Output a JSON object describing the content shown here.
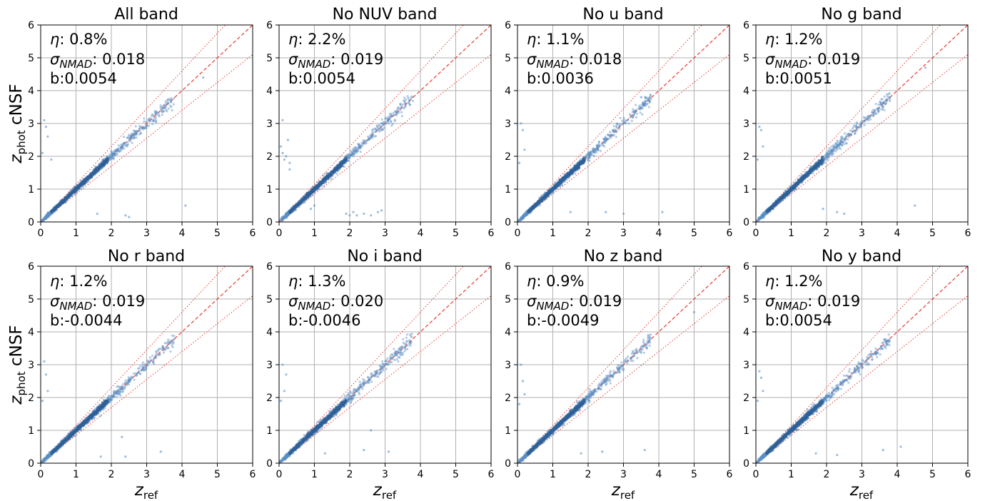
{
  "figure": {
    "ylabel_main": "z",
    "ylabel_sub": "phot",
    "ylabel_suffix": " cNSF",
    "xlabel_main": "z",
    "xlabel_sub": "ref"
  },
  "chart_data": [
    {
      "type": "scatter",
      "title": "All band",
      "metrics": {
        "eta": "0.8%",
        "sigma": "0.018",
        "b": "0.0054"
      },
      "metric_prefix": {
        "eta": "η",
        "sigma": "σ",
        "sigma_sub": "NMAD"
      },
      "xlim": [
        0,
        6
      ],
      "ylim": [
        0,
        6
      ],
      "xticks": [
        0,
        1,
        2,
        3,
        4,
        5,
        6
      ],
      "yticks": [
        0,
        1,
        2,
        3,
        4,
        5,
        6
      ],
      "grid": true,
      "reference_lines": {
        "identity": "dashed",
        "bounds": [
          0.85,
          1.15
        ]
      },
      "outliers": [
        [
          0.1,
          3.1
        ],
        [
          0.15,
          2.9
        ],
        [
          0.2,
          2.6
        ],
        [
          0.05,
          2.1
        ],
        [
          1.6,
          0.25
        ],
        [
          2.4,
          0.2
        ],
        [
          2.5,
          0.15
        ],
        [
          4.1,
          0.5
        ],
        [
          4.6,
          4.4
        ],
        [
          0.3,
          1.9
        ]
      ]
    },
    {
      "type": "scatter",
      "title": "No NUV band",
      "metrics": {
        "eta": "2.2%",
        "sigma": "0.019",
        "b": "0.0054"
      },
      "metric_prefix": {
        "eta": "η",
        "sigma": "σ",
        "sigma_sub": "NMAD"
      },
      "xlim": [
        0,
        6
      ],
      "ylim": [
        0,
        6
      ],
      "xticks": [
        0,
        1,
        2,
        3,
        4,
        5,
        6
      ],
      "yticks": [
        0,
        1,
        2,
        3,
        4,
        5,
        6
      ],
      "grid": true,
      "reference_lines": {
        "identity": "dashed",
        "bounds": [
          0.85,
          1.15
        ]
      },
      "outliers": [
        [
          0.05,
          2.3
        ],
        [
          0.1,
          2.1
        ],
        [
          0.15,
          1.9
        ],
        [
          0.2,
          2.0
        ],
        [
          0.3,
          1.8
        ],
        [
          0.1,
          3.1
        ],
        [
          0.25,
          2.5
        ],
        [
          0.3,
          1.6
        ],
        [
          1.9,
          0.25
        ],
        [
          2.0,
          0.2
        ],
        [
          2.1,
          0.3
        ],
        [
          2.2,
          0.2
        ],
        [
          2.4,
          0.25
        ],
        [
          2.6,
          0.2
        ],
        [
          2.8,
          0.3
        ],
        [
          2.9,
          0.35
        ],
        [
          1.0,
          0.5
        ],
        [
          0.9,
          0.4
        ]
      ]
    },
    {
      "type": "scatter",
      "title": "No u band",
      "metrics": {
        "eta": "1.1%",
        "sigma": "0.018",
        "b": "0.0036"
      },
      "metric_prefix": {
        "eta": "η",
        "sigma": "σ",
        "sigma_sub": "NMAD"
      },
      "xlim": [
        0,
        6
      ],
      "ylim": [
        0,
        6
      ],
      "xticks": [
        0,
        1,
        2,
        3,
        4,
        5,
        6
      ],
      "yticks": [
        0,
        1,
        2,
        3,
        4,
        5,
        6
      ],
      "grid": true,
      "reference_lines": {
        "identity": "dashed",
        "bounds": [
          0.85,
          1.15
        ]
      },
      "outliers": [
        [
          0.1,
          3.0
        ],
        [
          0.15,
          2.8
        ],
        [
          0.05,
          1.8
        ],
        [
          1.5,
          0.3
        ],
        [
          2.5,
          0.3
        ],
        [
          3.0,
          0.25
        ],
        [
          4.1,
          0.3
        ],
        [
          0.2,
          2.2
        ],
        [
          3.5,
          3.8
        ]
      ]
    },
    {
      "type": "scatter",
      "title": "No g band",
      "metrics": {
        "eta": "1.2%",
        "sigma": "0.019",
        "b": "0.0051"
      },
      "metric_prefix": {
        "eta": "η",
        "sigma": "σ",
        "sigma_sub": "NMAD"
      },
      "xlim": [
        0,
        6
      ],
      "ylim": [
        0,
        6
      ],
      "xticks": [
        0,
        1,
        2,
        3,
        4,
        5,
        6
      ],
      "yticks": [
        0,
        1,
        2,
        3,
        4,
        5,
        6
      ],
      "grid": true,
      "reference_lines": {
        "identity": "dashed",
        "bounds": [
          0.85,
          1.15
        ]
      },
      "outliers": [
        [
          0.1,
          2.9
        ],
        [
          0.15,
          2.8
        ],
        [
          0.05,
          1.9
        ],
        [
          1.9,
          0.4
        ],
        [
          2.3,
          0.3
        ],
        [
          2.5,
          0.25
        ],
        [
          4.5,
          0.5
        ],
        [
          4.8,
          4.7
        ],
        [
          0.2,
          2.3
        ]
      ]
    },
    {
      "type": "scatter",
      "title": "No r band",
      "metrics": {
        "eta": "1.2%",
        "sigma": "0.019",
        "b": "-0.0044"
      },
      "metric_prefix": {
        "eta": "η",
        "sigma": "σ",
        "sigma_sub": "NMAD"
      },
      "xlim": [
        0,
        6
      ],
      "ylim": [
        0,
        6
      ],
      "xticks": [
        0,
        1,
        2,
        3,
        4,
        5,
        6
      ],
      "yticks": [
        0,
        1,
        2,
        3,
        4,
        5,
        6
      ],
      "grid": true,
      "reference_lines": {
        "identity": "dashed",
        "bounds": [
          0.85,
          1.15
        ]
      },
      "outliers": [
        [
          0.1,
          3.1
        ],
        [
          0.15,
          2.7
        ],
        [
          0.05,
          1.9
        ],
        [
          1.7,
          0.2
        ],
        [
          2.4,
          0.2
        ],
        [
          3.4,
          0.35
        ],
        [
          2.3,
          0.8
        ],
        [
          0.2,
          2.2
        ]
      ]
    },
    {
      "type": "scatter",
      "title": "No i band",
      "metrics": {
        "eta": "1.3%",
        "sigma": "0.020",
        "b": "-0.0046"
      },
      "metric_prefix": {
        "eta": "η",
        "sigma": "σ",
        "sigma_sub": "NMAD"
      },
      "xlim": [
        0,
        6
      ],
      "ylim": [
        0,
        6
      ],
      "xticks": [
        0,
        1,
        2,
        3,
        4,
        5,
        6
      ],
      "yticks": [
        0,
        1,
        2,
        3,
        4,
        5,
        6
      ],
      "grid": true,
      "reference_lines": {
        "identity": "dashed",
        "bounds": [
          0.85,
          1.15
        ]
      },
      "outliers": [
        [
          0.1,
          3.0
        ],
        [
          0.2,
          2.7
        ],
        [
          0.05,
          1.9
        ],
        [
          1.3,
          0.3
        ],
        [
          2.4,
          0.4
        ],
        [
          3.1,
          0.35
        ],
        [
          2.6,
          1.0
        ],
        [
          0.15,
          2.2
        ]
      ]
    },
    {
      "type": "scatter",
      "title": "No z band",
      "metrics": {
        "eta": "0.9%",
        "sigma": "0.019",
        "b": "-0.0049"
      },
      "metric_prefix": {
        "eta": "η",
        "sigma": "σ",
        "sigma_sub": "NMAD"
      },
      "xlim": [
        0,
        6
      ],
      "ylim": [
        0,
        6
      ],
      "xticks": [
        0,
        1,
        2,
        3,
        4,
        5,
        6
      ],
      "yticks": [
        0,
        1,
        2,
        3,
        4,
        5,
        6
      ],
      "grid": true,
      "reference_lines": {
        "identity": "dashed",
        "bounds": [
          0.85,
          1.15
        ]
      },
      "outliers": [
        [
          0.1,
          3.0
        ],
        [
          0.15,
          2.5
        ],
        [
          0.05,
          1.8
        ],
        [
          1.8,
          0.3
        ],
        [
          2.4,
          0.35
        ],
        [
          3.6,
          0.4
        ],
        [
          5.0,
          4.6
        ],
        [
          0.2,
          2.1
        ]
      ]
    },
    {
      "type": "scatter",
      "title": "No y band",
      "metrics": {
        "eta": "1.2%",
        "sigma": "0.019",
        "b": "0.0054"
      },
      "metric_prefix": {
        "eta": "η",
        "sigma": "σ",
        "sigma_sub": "NMAD"
      },
      "xlim": [
        0,
        6
      ],
      "ylim": [
        0,
        6
      ],
      "xticks": [
        0,
        1,
        2,
        3,
        4,
        5,
        6
      ],
      "yticks": [
        0,
        1,
        2,
        3,
        4,
        5,
        6
      ],
      "grid": true,
      "reference_lines": {
        "identity": "dashed",
        "bounds": [
          0.85,
          1.15
        ]
      },
      "outliers": [
        [
          0.1,
          2.8
        ],
        [
          0.15,
          2.6
        ],
        [
          0.05,
          1.9
        ],
        [
          1.7,
          0.3
        ],
        [
          2.3,
          0.25
        ],
        [
          3.6,
          0.4
        ],
        [
          4.1,
          0.5
        ],
        [
          0.2,
          2.2
        ]
      ]
    }
  ],
  "colors": {
    "points": "#5b8fc4",
    "identity": "#e8392f",
    "bounds": "#e8392f",
    "grid": "#b0b0b0",
    "axis": "#000000"
  }
}
